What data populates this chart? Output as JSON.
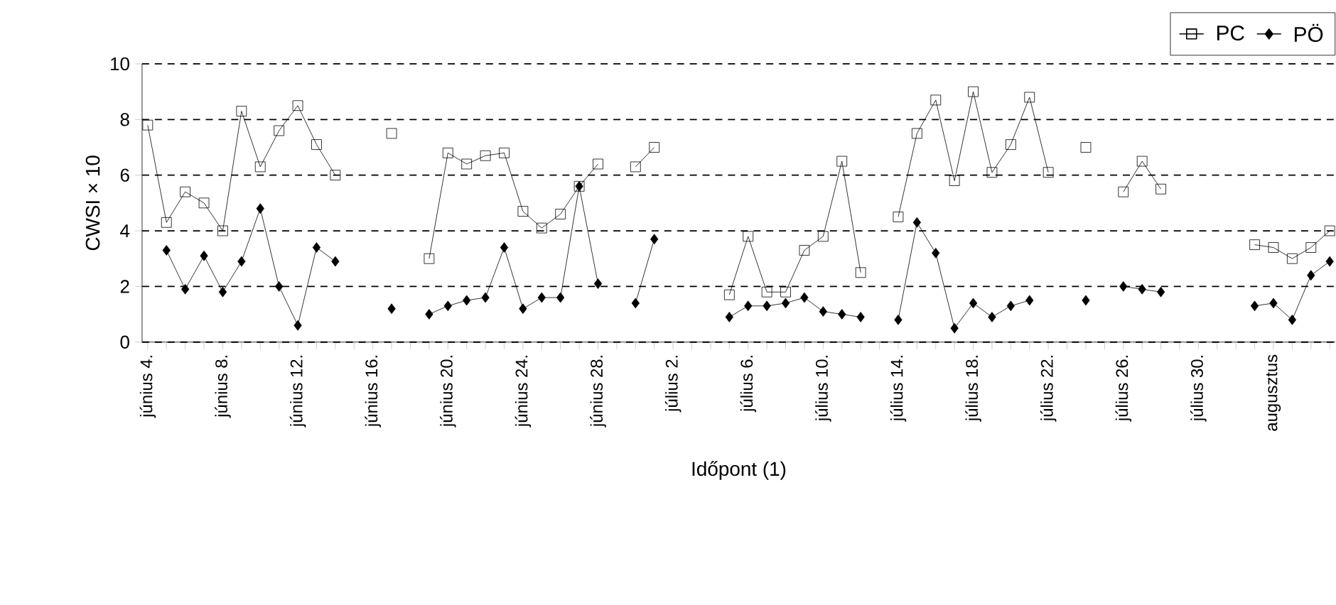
{
  "chart_data": {
    "type": "line",
    "xlabel": "Időpont (1)",
    "ylabel": "CWSI × 10",
    "categories": [
      "június 4.",
      null,
      null,
      null,
      "június 8.",
      null,
      null,
      null,
      "június 12.",
      null,
      null,
      null,
      "június 16.",
      null,
      null,
      null,
      "június 20.",
      null,
      null,
      null,
      "június 24.",
      null,
      null,
      null,
      "június 28.",
      null,
      null,
      null,
      "július 2.",
      null,
      null,
      null,
      "július 6.",
      null,
      null,
      null,
      "július 10.",
      null,
      null,
      null,
      "július 14.",
      null,
      null,
      null,
      "július 18.",
      null,
      null,
      null,
      "július 22.",
      null,
      null,
      null,
      "július 26.",
      null,
      null,
      null,
      "július 30.",
      null,
      null,
      null,
      "augusztus",
      null,
      null,
      null
    ],
    "series": [
      {
        "name": "PC",
        "color": "#000000",
        "marker": "square",
        "values": [
          7.8,
          4.3,
          5.4,
          5.0,
          4.0,
          8.3,
          6.3,
          7.6,
          8.5,
          7.1,
          6.0,
          null,
          null,
          7.5,
          null,
          3.0,
          6.8,
          6.4,
          6.7,
          6.8,
          4.7,
          4.1,
          4.6,
          5.6,
          6.4,
          null,
          6.3,
          7.0,
          null,
          null,
          null,
          1.7,
          3.8,
          1.8,
          1.8,
          3.3,
          3.8,
          6.5,
          2.5,
          null,
          4.5,
          7.5,
          8.7,
          5.8,
          9.0,
          6.1,
          7.1,
          8.8,
          6.1,
          null,
          7.0,
          null,
          5.4,
          6.5,
          5.5,
          null,
          null,
          null,
          null,
          3.5,
          3.4,
          3.0,
          3.4,
          4.0
        ]
      },
      {
        "name": "PÖ",
        "color": "#000000",
        "marker": "diamond",
        "values": [
          null,
          3.3,
          1.9,
          3.1,
          1.8,
          2.9,
          4.8,
          2.0,
          0.6,
          3.4,
          2.9,
          null,
          null,
          1.2,
          null,
          1.0,
          1.3,
          1.5,
          1.6,
          3.4,
          1.2,
          1.6,
          1.6,
          5.6,
          2.1,
          null,
          1.4,
          3.7,
          null,
          null,
          null,
          0.9,
          1.3,
          1.3,
          1.4,
          1.6,
          1.1,
          1.0,
          0.9,
          null,
          0.8,
          4.3,
          3.2,
          0.5,
          1.4,
          0.9,
          1.3,
          1.5,
          null,
          null,
          1.5,
          null,
          2.0,
          1.9,
          1.8,
          null,
          null,
          null,
          null,
          1.3,
          1.4,
          0.8,
          2.4,
          2.9
        ]
      }
    ],
    "ylim": [
      0,
      10
    ],
    "yticks": [
      0,
      2,
      4,
      6,
      8,
      10
    ],
    "grid": "y",
    "legend": "top right",
    "line_style": "solid"
  }
}
